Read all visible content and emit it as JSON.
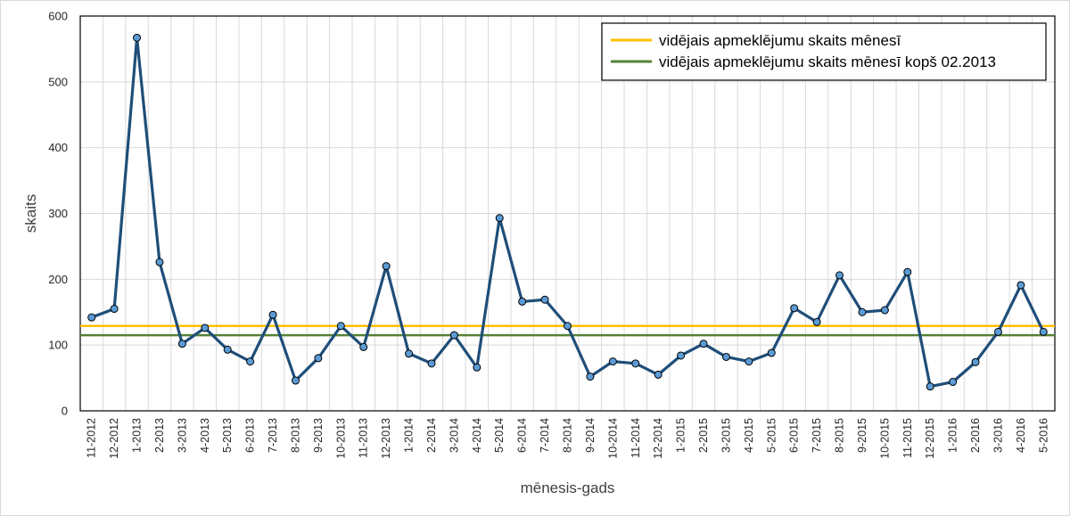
{
  "chart_data": {
    "type": "line",
    "xlabel": "mēnesis-gads",
    "ylabel": "skaits",
    "ylim": [
      0,
      600
    ],
    "yticks": [
      0,
      100,
      200,
      300,
      400,
      500,
      600
    ],
    "grid": true,
    "legend_position": "top-right",
    "categories": [
      "11-2012",
      "12-2012",
      "1-2013",
      "2-2013",
      "3-2013",
      "4-2013",
      "5-2013",
      "6-2013",
      "7-2013",
      "8-2013",
      "9-2013",
      "10-2013",
      "11-2013",
      "12-2013",
      "1-2014",
      "2-2014",
      "3-2014",
      "4-2014",
      "5-2014",
      "6-2014",
      "7-2014",
      "8-2014",
      "9-2014",
      "10-2014",
      "11-2014",
      "12-2014",
      "1-2015",
      "2-2015",
      "3-2015",
      "4-2015",
      "5-2015",
      "6-2015",
      "7-2015",
      "8-2015",
      "9-2015",
      "10-2015",
      "11-2015",
      "12-2015",
      "1-2016",
      "2-2016",
      "3-2016",
      "4-2016",
      "5-2016"
    ],
    "series": [
      {
        "values": [
          142,
          155,
          567,
          226,
          102,
          126,
          93,
          75,
          146,
          46,
          80,
          129,
          97,
          220,
          87,
          72,
          115,
          66,
          293,
          166,
          169,
          129,
          52,
          75,
          72,
          55,
          84,
          102,
          82,
          75,
          88,
          156,
          135,
          206,
          150,
          153,
          211,
          37,
          44,
          74,
          120,
          191,
          120
        ],
        "color": "#1f4e79",
        "marker_fill": "#5b9bd5"
      }
    ],
    "reference_lines": [
      {
        "name": "vidējais apmeklējumu skaits mēnesī",
        "value": 129,
        "color": "#ffc000"
      },
      {
        "name": "vidējais apmeklējumu skaits mēnesī kopš 02.2013",
        "value": 115,
        "color": "#548235"
      }
    ]
  }
}
